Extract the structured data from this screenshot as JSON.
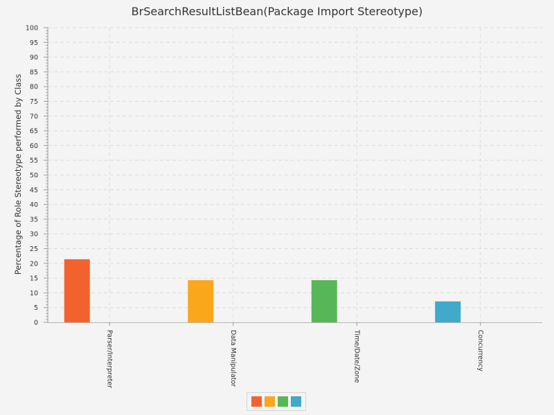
{
  "chart_data": {
    "type": "bar",
    "title": "BrSearchResultListBean(Package Import Stereotype)",
    "xlabel": "",
    "ylabel": "Percentage of Role Stereotype performed by Class",
    "categories": [
      "Parser/Interpreter",
      "Data Manipulator",
      "Time/Date/Zone",
      "Concurrency"
    ],
    "series": [
      {
        "values": [
          21.4,
          14.3,
          14.3,
          7.1
        ],
        "colors": [
          "#f3622d",
          "#fba71b",
          "#57b757",
          "#41a9c9"
        ]
      }
    ],
    "ylim": [
      0,
      100
    ],
    "yticks": [
      "0",
      "5",
      "10",
      "15",
      "20",
      "25",
      "30",
      "35",
      "40",
      "45",
      "50",
      "55",
      "60",
      "65",
      "70",
      "75",
      "80",
      "85",
      "90",
      "95",
      "100"
    ],
    "grid": true,
    "legend_position": "bottom"
  }
}
